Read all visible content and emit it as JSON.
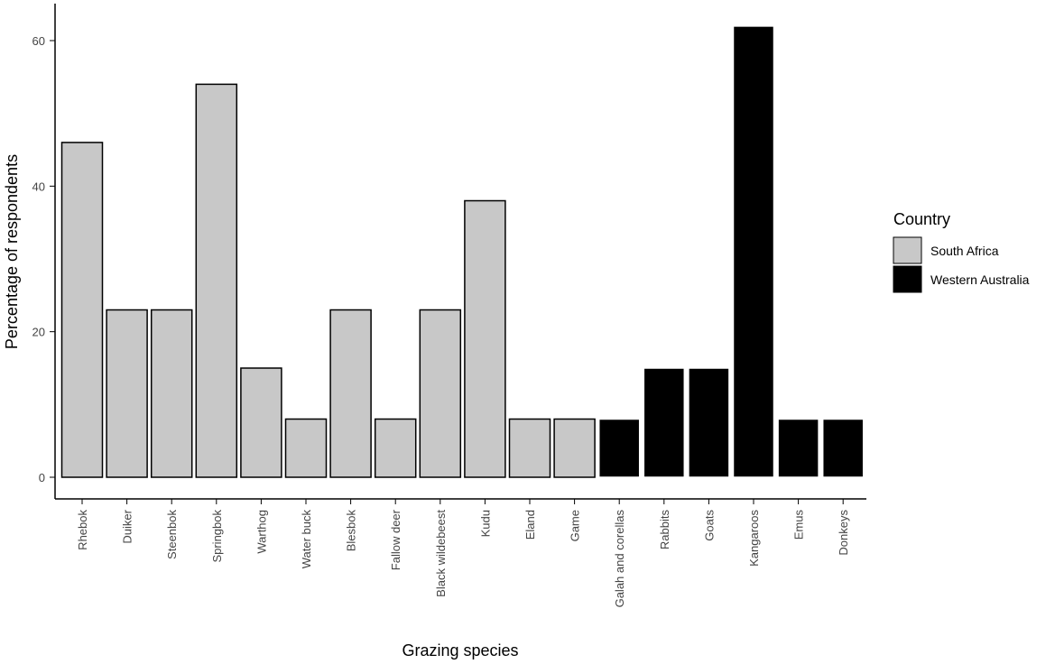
{
  "chart_data": {
    "type": "bar",
    "title": "",
    "xlabel": "Grazing species",
    "ylabel": "Percentage of respondents",
    "ylim": [
      0,
      65
    ],
    "yticks": [
      0,
      20,
      40,
      60
    ],
    "categories": [
      "Rhebok",
      "Duiker",
      "Steenbok",
      "Springbok",
      "Warthog",
      "Water buck",
      "Blesbok",
      "Fallow deer",
      "Black wildebeest",
      "Kudu",
      "Eland",
      "Game",
      "Galah and corellas",
      "Rabbits",
      "Goats",
      "Kangaroos",
      "Emus",
      "Donkeys"
    ],
    "values": [
      46,
      23,
      23,
      54,
      15,
      8,
      23,
      8,
      23,
      38,
      8,
      8,
      8,
      15,
      15,
      62,
      8,
      8
    ],
    "groups": [
      "South Africa",
      "South Africa",
      "South Africa",
      "South Africa",
      "South Africa",
      "South Africa",
      "South Africa",
      "South Africa",
      "South Africa",
      "South Africa",
      "South Africa",
      "South Africa",
      "Western Australia",
      "Western Australia",
      "Western Australia",
      "Western Australia",
      "Western Australia",
      "Western Australia"
    ],
    "legend": {
      "title": "Country",
      "position": "right",
      "entries": [
        {
          "label": "South Africa",
          "color": "#c8c8c8"
        },
        {
          "label": "Western Australia",
          "color": "#000000"
        }
      ]
    },
    "grid": false
  }
}
